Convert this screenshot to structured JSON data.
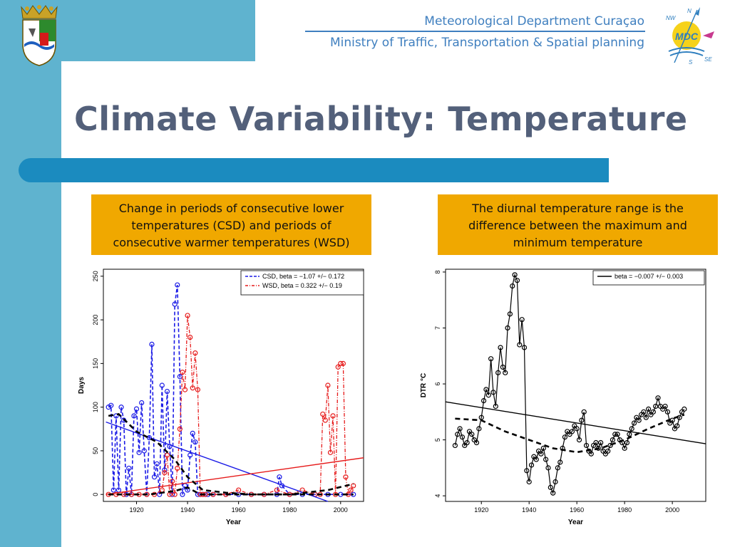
{
  "header": {
    "org": "Meteorological Department Curaçao",
    "ministry": "Ministry of Traffic, Transportation & Spatial planning",
    "logo_text": "MDC",
    "compass": {
      "n": "N",
      "nw": "NW",
      "se": "SE",
      "s": "S"
    }
  },
  "title": "Climate Variability: Temperature",
  "captions": {
    "left": "Change in periods of consecutive lower temperatures (CSD) and periods of consecutive  warmer temperatures (WSD)",
    "right": "The diurnal temperature range is the difference between the maximum and minimum temperature"
  },
  "colors": {
    "csd": "#1a1ae6",
    "wsd": "#e61a1a",
    "dtr": "#000000",
    "accent_bar": "#1b8bbf",
    "caption_bg": "#f0a800",
    "side_bar": "#5fb3cf"
  },
  "chart_data": [
    {
      "type": "line",
      "xlabel": "Year",
      "ylabel": "Days",
      "xlim": [
        1907,
        2009
      ],
      "ylim": [
        -8,
        258
      ],
      "xticks": [
        1920,
        1940,
        1960,
        1980,
        2000
      ],
      "yticks": [
        0,
        50,
        100,
        150,
        200,
        250
      ],
      "legend_position": "top-right",
      "grid": false,
      "series": [
        {
          "name": "CSD, beta = −1.07 +/− 0.172",
          "style": "dashed",
          "x": [
            1909,
            1910,
            1911,
            1912,
            1913,
            1914,
            1915,
            1916,
            1917,
            1918,
            1919,
            1920,
            1921,
            1922,
            1923,
            1924,
            1925,
            1926,
            1927,
            1928,
            1929,
            1930,
            1931,
            1932,
            1933,
            1934,
            1935,
            1936,
            1937,
            1938,
            1939,
            1940,
            1941,
            1942,
            1943,
            1944,
            1945,
            1946,
            1947,
            1948,
            1950,
            1955,
            1960,
            1965,
            1970,
            1975,
            1976,
            1977,
            1980,
            1985,
            1990,
            1995,
            2000,
            2005
          ],
          "values": [
            100,
            102,
            5,
            90,
            5,
            100,
            85,
            0,
            30,
            0,
            90,
            98,
            48,
            105,
            50,
            0,
            65,
            172,
            20,
            35,
            0,
            125,
            28,
            118,
            55,
            0,
            218,
            240,
            135,
            0,
            10,
            5,
            45,
            70,
            60,
            0,
            0,
            0,
            0,
            0,
            0,
            0,
            0,
            0,
            0,
            0,
            20,
            10,
            0,
            0,
            0,
            0,
            0,
            0
          ]
        },
        {
          "name": "WSD, beta = 0.322 +/− 0.19",
          "style": "dot-dash",
          "x": [
            1909,
            1912,
            1915,
            1918,
            1921,
            1924,
            1927,
            1930,
            1931,
            1932,
            1933,
            1934,
            1935,
            1936,
            1937,
            1938,
            1939,
            1940,
            1941,
            1942,
            1943,
            1944,
            1945,
            1946,
            1947,
            1950,
            1955,
            1960,
            1965,
            1970,
            1975,
            1980,
            1985,
            1990,
            1992,
            1993,
            1994,
            1995,
            1996,
            1997,
            1998,
            1999,
            2000,
            2001,
            2002,
            2003,
            2004,
            2005
          ],
          "values": [
            0,
            0,
            0,
            0,
            0,
            0,
            0,
            5,
            25,
            45,
            0,
            15,
            0,
            30,
            75,
            140,
            120,
            205,
            180,
            122,
            162,
            120,
            0,
            0,
            0,
            0,
            0,
            5,
            0,
            0,
            5,
            0,
            5,
            0,
            0,
            92,
            85,
            125,
            48,
            90,
            0,
            146,
            150,
            150,
            20,
            0,
            5,
            10
          ]
        },
        {
          "name": "CSD trend",
          "style": "solid",
          "x": [
            1908,
            1995
          ],
          "values": [
            83,
            -8
          ]
        },
        {
          "name": "WSD trend",
          "style": "solid",
          "x": [
            1908,
            2009
          ],
          "values": [
            0,
            42
          ]
        },
        {
          "name": "CSD smooth",
          "style": "thick-dashed",
          "x": [
            1909,
            1913,
            1920,
            1928,
            1935,
            1940,
            1946,
            1955,
            1965,
            1975,
            1985,
            1995,
            2005
          ],
          "values": [
            90,
            92,
            72,
            60,
            40,
            20,
            5,
            2,
            0,
            0,
            0,
            0,
            0
          ]
        },
        {
          "name": "WSD smooth",
          "style": "thick-dashed",
          "x": [
            1909,
            1925,
            1935,
            1940,
            1945,
            1960,
            1980,
            1995,
            2005
          ],
          "values": [
            0,
            0,
            4,
            8,
            0,
            0,
            0,
            5,
            12
          ]
        }
      ]
    },
    {
      "type": "line",
      "xlabel": "Year",
      "ylabel": "DTR  °C",
      "xlim": [
        1905,
        2014
      ],
      "ylim": [
        3.9,
        8.05
      ],
      "xticks": [
        1920,
        1940,
        1960,
        1980,
        2000
      ],
      "yticks": [
        4,
        5,
        6,
        7,
        8
      ],
      "legend_position": "top-right",
      "grid": false,
      "series": [
        {
          "name": "beta = −0.007 +/− 0.003",
          "style": "solid",
          "x": [
            1905,
            2014
          ],
          "values": [
            5.68,
            4.93
          ]
        },
        {
          "name": "DTR",
          "style": "line-markers",
          "x": [
            1909,
            1910,
            1911,
            1912,
            1913,
            1914,
            1915,
            1916,
            1917,
            1918,
            1919,
            1920,
            1921,
            1922,
            1923,
            1924,
            1925,
            1926,
            1927,
            1928,
            1929,
            1930,
            1931,
            1932,
            1933,
            1934,
            1935,
            1936,
            1937,
            1938,
            1939,
            1940,
            1941,
            1942,
            1943,
            1944,
            1945,
            1946,
            1947,
            1948,
            1949,
            1950,
            1951,
            1952,
            1953,
            1954,
            1955,
            1956,
            1957,
            1958,
            1959,
            1960,
            1961,
            1962,
            1963,
            1964,
            1965,
            1966,
            1967,
            1968,
            1969,
            1970,
            1971,
            1972,
            1973,
            1974,
            1975,
            1976,
            1977,
            1978,
            1979,
            1980,
            1981,
            1982,
            1983,
            1984,
            1985,
            1986,
            1987,
            1988,
            1989,
            1990,
            1991,
            1992,
            1993,
            1994,
            1995,
            1996,
            1997,
            1998,
            1999,
            2000,
            2001,
            2002,
            2003,
            2004,
            2005
          ],
          "values": [
            4.9,
            5.1,
            5.2,
            5.05,
            4.9,
            4.95,
            5.15,
            5.1,
            5.0,
            4.95,
            5.2,
            5.4,
            5.7,
            5.9,
            5.8,
            6.45,
            5.85,
            5.6,
            6.2,
            6.65,
            6.3,
            6.2,
            7.0,
            7.25,
            7.75,
            7.95,
            7.85,
            6.7,
            7.15,
            6.65,
            4.45,
            4.25,
            4.55,
            4.7,
            4.65,
            4.8,
            4.75,
            4.85,
            4.65,
            4.5,
            4.15,
            4.05,
            4.25,
            4.5,
            4.6,
            4.85,
            5.05,
            5.15,
            5.1,
            5.15,
            5.25,
            5.2,
            5.0,
            5.35,
            5.5,
            4.9,
            4.8,
            4.75,
            4.9,
            4.95,
            4.85,
            4.95,
            4.8,
            4.75,
            4.8,
            4.9,
            5.0,
            5.1,
            5.1,
            5.0,
            4.95,
            4.85,
            4.95,
            5.1,
            5.2,
            5.3,
            5.4,
            5.35,
            5.45,
            5.5,
            5.4,
            5.55,
            5.45,
            5.5,
            5.6,
            5.75,
            5.6,
            5.55,
            5.6,
            5.5,
            5.3,
            5.35,
            5.2,
            5.25,
            5.4,
            5.5,
            5.55
          ]
        },
        {
          "name": "DTR smooth",
          "style": "thick-dashed",
          "x": [
            1909,
            1920,
            1930,
            1940,
            1950,
            1960,
            1970,
            1980,
            1990,
            2000,
            2005
          ],
          "values": [
            5.38,
            5.35,
            5.15,
            5.0,
            4.85,
            4.78,
            4.85,
            5.0,
            5.2,
            5.38,
            5.45
          ]
        }
      ]
    }
  ]
}
